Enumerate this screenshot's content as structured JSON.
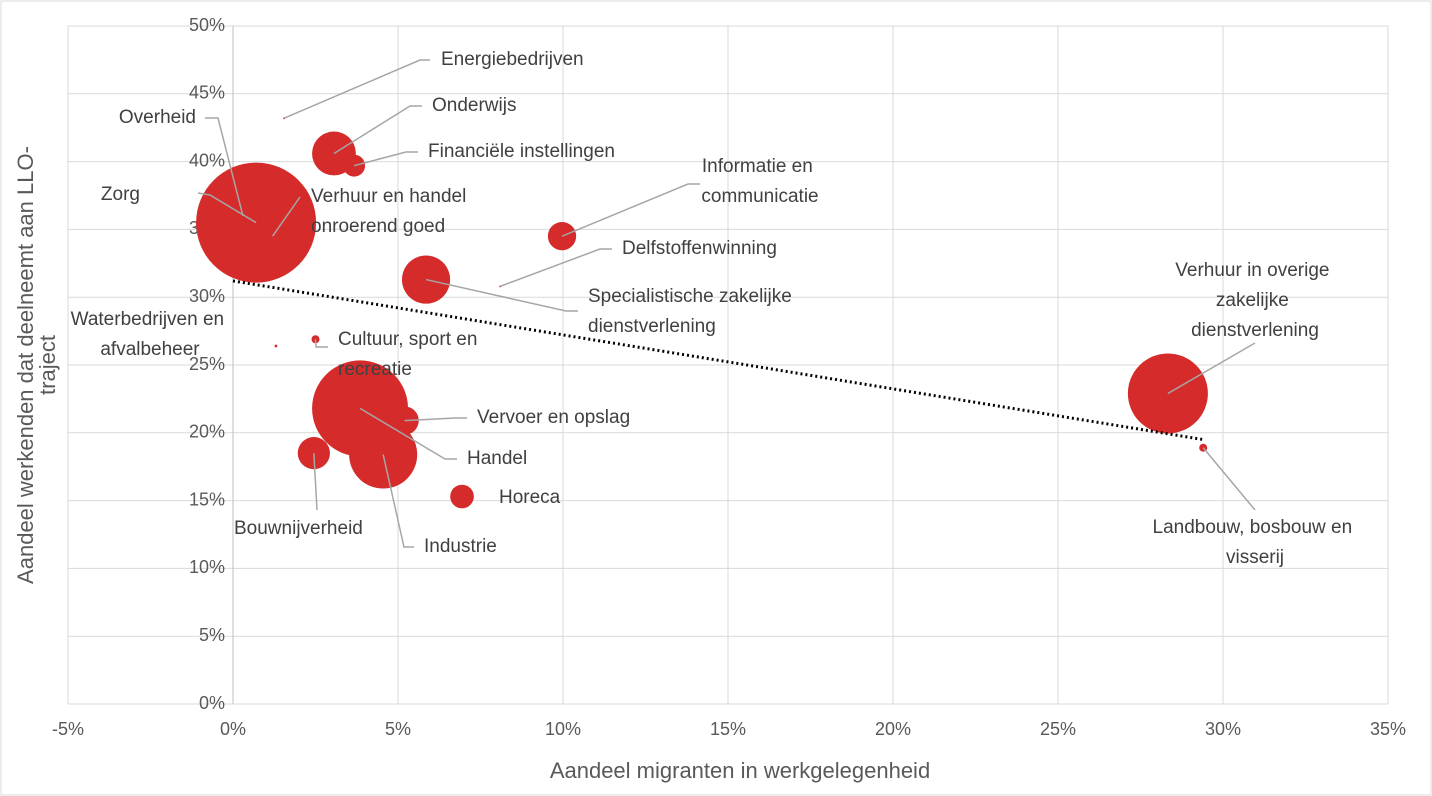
{
  "chart_data": {
    "type": "bubble",
    "x_label": "Aandeel migranten in werkgelegenheid",
    "y_label": "Aandeel werkenden dat deelneemt aan LLO-traject",
    "xlim": [
      -5,
      35
    ],
    "ylim": [
      0,
      50
    ],
    "xticks": [
      {
        "value": -5,
        "label": "-5%"
      },
      {
        "value": 0,
        "label": "0%"
      },
      {
        "value": 5,
        "label": "5%"
      },
      {
        "value": 10,
        "label": "10%"
      },
      {
        "value": 15,
        "label": "15%"
      },
      {
        "value": 20,
        "label": "20%"
      },
      {
        "value": 25,
        "label": "25%"
      },
      {
        "value": 30,
        "label": "30%"
      },
      {
        "value": 35,
        "label": "35%"
      }
    ],
    "yticks": [
      {
        "value": 0,
        "label": "0%"
      },
      {
        "value": 5,
        "label": "5%"
      },
      {
        "value": 10,
        "label": "10%"
      },
      {
        "value": 15,
        "label": "15%"
      },
      {
        "value": 20,
        "label": "20%"
      },
      {
        "value": 25,
        "label": "25%"
      },
      {
        "value": 30,
        "label": "30%"
      },
      {
        "value": 35,
        "label": "35%"
      },
      {
        "value": 40,
        "label": "40%"
      },
      {
        "value": 45,
        "label": "45%"
      },
      {
        "value": 50,
        "label": "50%"
      }
    ],
    "grid": true,
    "color": "#d52b2b",
    "points": {
      "labels": [
        "Energiebedrijven",
        "Onderwijs",
        "Financiële instellingen",
        "Overheid",
        "Zorg",
        "Verhuur en handel onroerend goed",
        "Informatie en communicatie",
        "Delfstoffenwinning",
        "Specialistische zakelijke dienstverlening",
        "Waterbedrijven en afvalbeheer",
        "Cultuur, sport en recreatie",
        "Handel",
        "Vervoer en opslag",
        "Industrie",
        "Bouwnijverheid",
        "Horeca",
        "Verhuur in overige zakelijke dienstverlening",
        "Landbouw, bosbouw en visserij"
      ],
      "x": [
        1.55,
        3.06,
        3.67,
        0.3,
        0.7,
        1.2,
        9.97,
        8.1,
        5.85,
        1.3,
        2.5,
        3.85,
        5.2,
        4.55,
        2.45,
        6.94,
        28.33,
        29.4
      ],
      "y": [
        43.2,
        40.6,
        39.7,
        36.0,
        35.5,
        34.5,
        34.5,
        30.8,
        31.3,
        26.4,
        26.9,
        21.8,
        20.9,
        18.4,
        18.5,
        15.3,
        22.9,
        18.9
      ],
      "sizes": [
        0.01,
        4.8,
        1.2,
        9,
        36,
        0.6,
        2,
        0.01,
        5.8,
        0.02,
        0.16,
        23,
        2,
        11.6,
        2.6,
        1.4,
        16,
        0.16
      ]
    },
    "trendline": {
      "x": [
        0,
        29.4
      ],
      "y": [
        31.2,
        19.5
      ]
    }
  }
}
